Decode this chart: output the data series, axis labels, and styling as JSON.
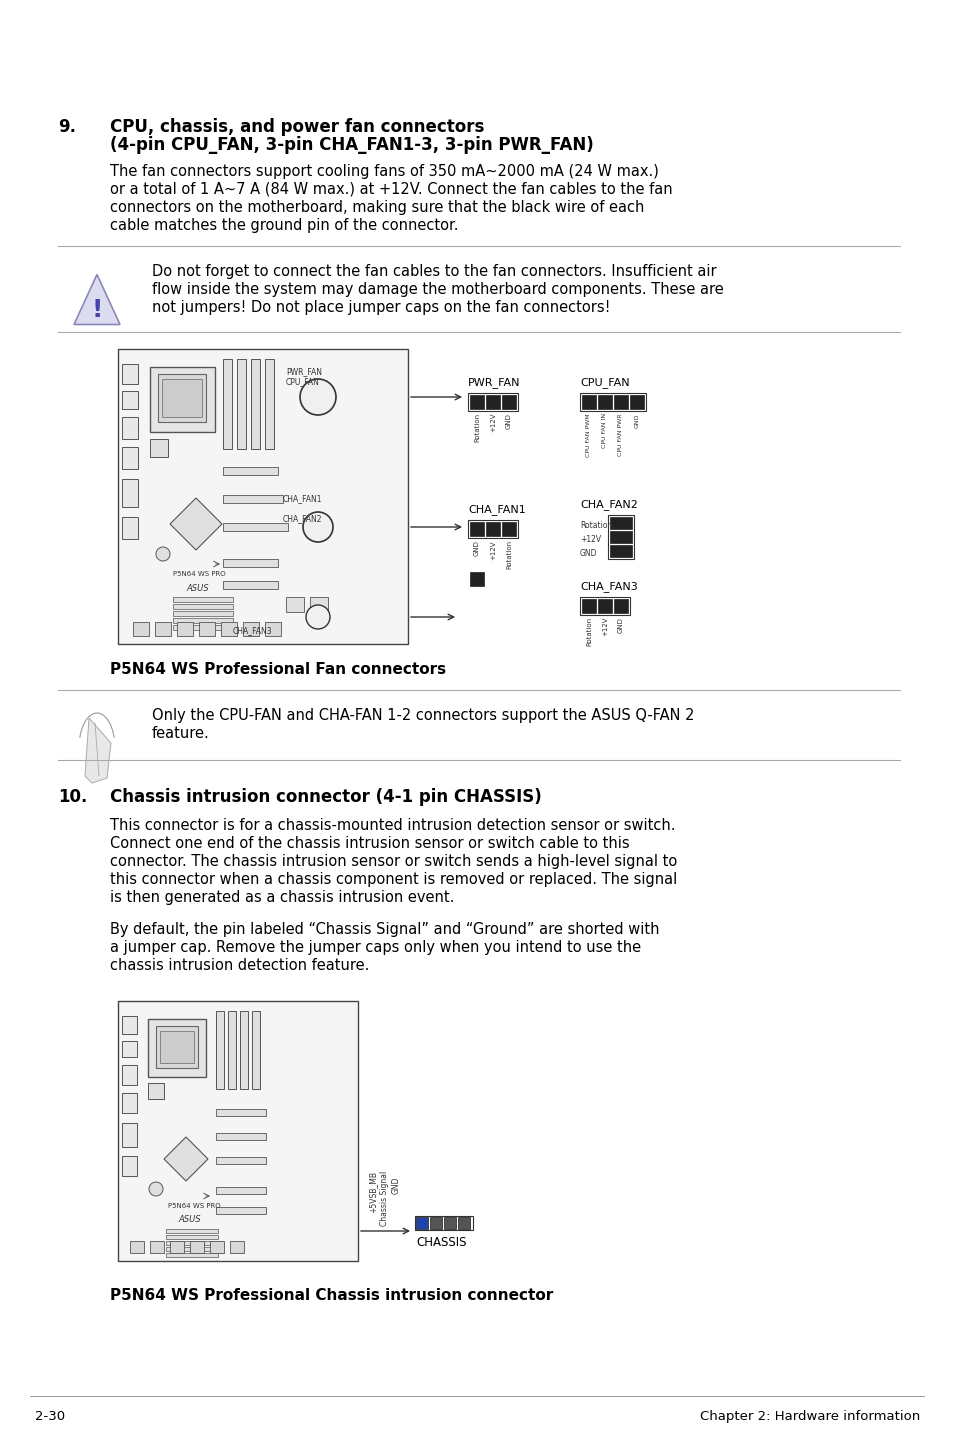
{
  "bg_color": "#ffffff",
  "section9_number": "9.",
  "section9_title_line1": "CPU, chassis, and power fan connectors",
  "section9_title_line2": "(4-pin CPU_FAN, 3-pin CHA_FAN1-3, 3-pin PWR_FAN)",
  "section9_body": "The fan connectors support cooling fans of 350 mA~2000 mA (24 W max.)\nor a total of 1 A~7 A (84 W max.) at +12V. Connect the fan cables to the fan\nconnectors on the motherboard, making sure that the black wire of each\ncable matches the ground pin of the connector.",
  "warning_text": "Do not forget to connect the fan cables to the fan connectors. Insufficient air\nflow inside the system may damage the motherboard components. These are\nnot jumpers! Do not place jumper caps on the fan connectors!",
  "fan_caption": "P5N64 WS Professional Fan connectors",
  "note_text": "Only the CPU-FAN and CHA-FAN 1-2 connectors support the ASUS Q-FAN 2\nfeature.",
  "section10_number": "10.",
  "section10_title": "Chassis intrusion connector (4-1 pin CHASSIS)",
  "section10_body1": "This connector is for a chassis-mounted intrusion detection sensor or switch.\nConnect one end of the chassis intrusion sensor or switch cable to this\nconnector. The chassis intrusion sensor or switch sends a high-level signal to\nthis connector when a chassis component is removed or replaced. The signal\nis then generated as a chassis intrusion event.",
  "section10_body2": "By default, the pin labeled “Chassis Signal” and “Ground” are shorted with\na jumper cap. Remove the jumper caps only when you intend to use the\nchassis intrusion detection feature.",
  "chassis_caption": "P5N64 WS Professional Chassis intrusion connector",
  "footer_left": "2-30",
  "footer_right": "Chapter 2: Hardware information"
}
